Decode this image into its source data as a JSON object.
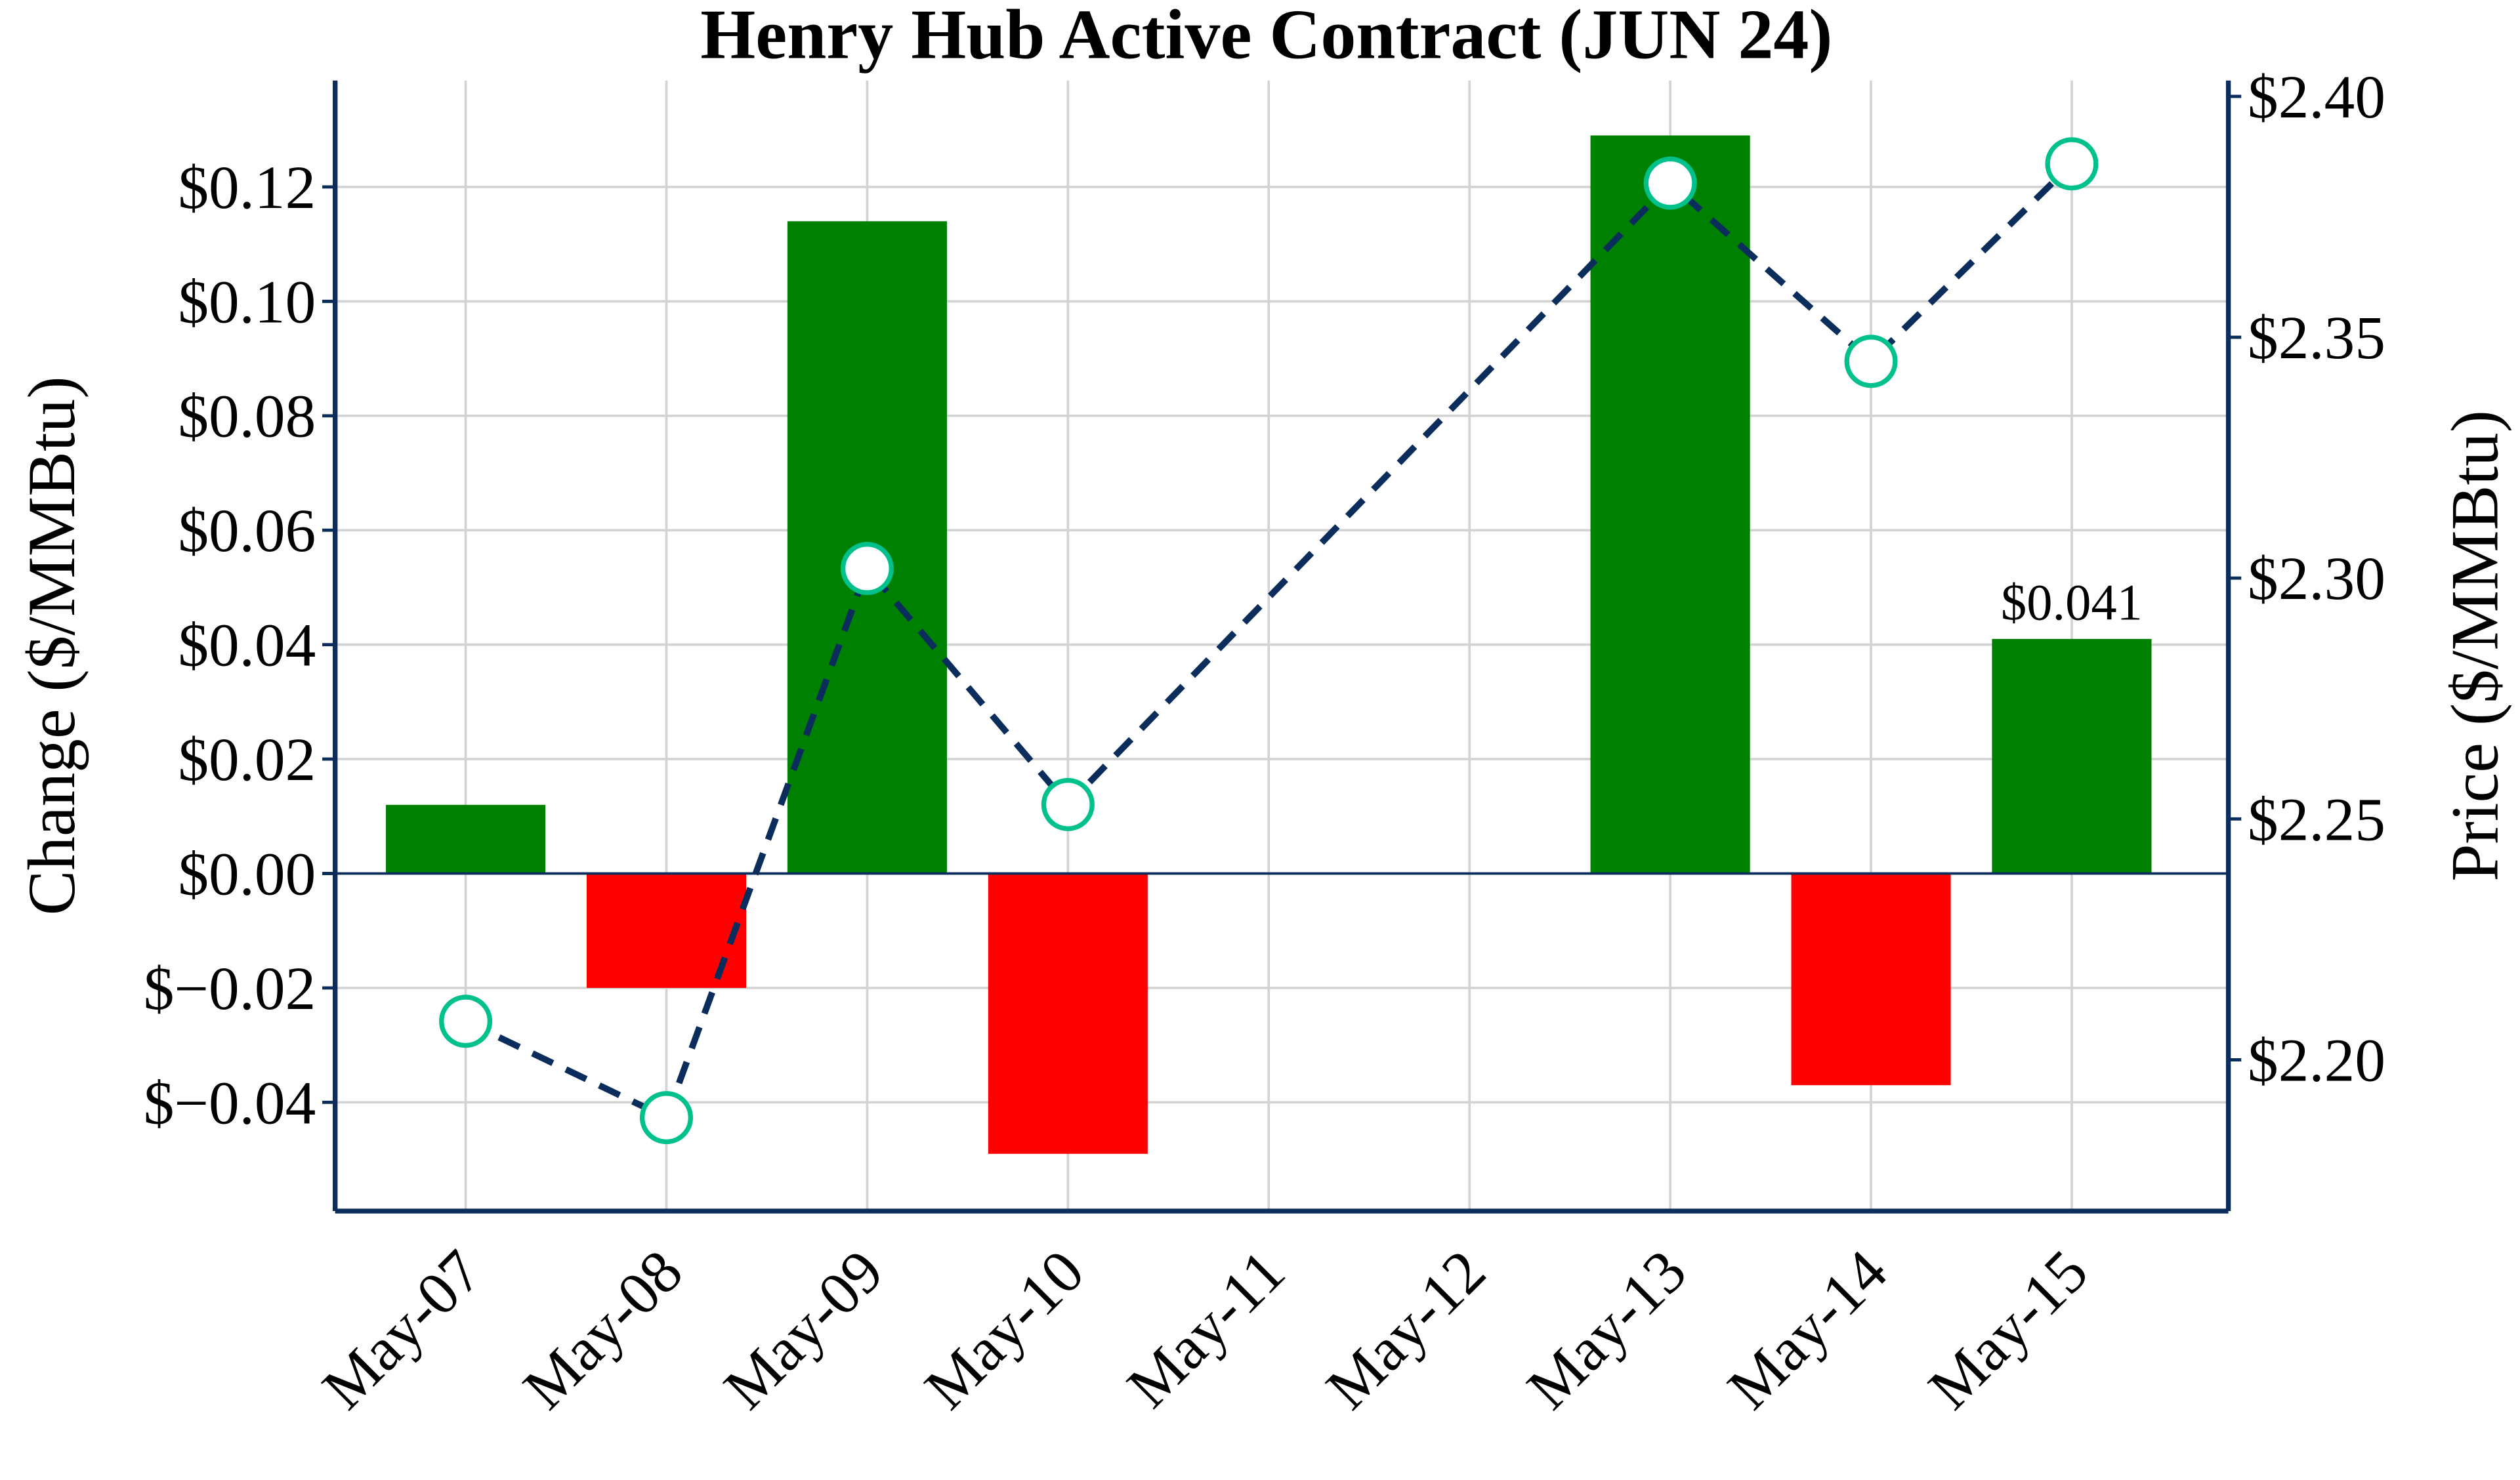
{
  "chart_data": {
    "type": "bar+line",
    "title": "Henry Hub Active Contract (JUN 24)",
    "xlabel": "",
    "ylabel_left": "Change ($/MMBtu)",
    "ylabel_right": "Price ($/MMBtu)",
    "categories": [
      "May-07",
      "May-08",
      "May-09",
      "May-10",
      "May-11",
      "May-12",
      "May-13",
      "May-14",
      "May-15"
    ],
    "change": [
      0.012,
      -0.02,
      0.114,
      -0.049,
      null,
      null,
      0.129,
      -0.037,
      0.041
    ],
    "price": [
      2.208,
      2.188,
      2.302,
      2.253,
      null,
      null,
      2.382,
      2.345,
      2.386
    ],
    "ylim_left": [
      -0.059,
      0.1386
    ],
    "ylim_right": [
      2.1686,
      2.4033
    ],
    "left_ticks": [
      -0.04,
      -0.02,
      0.0,
      0.02,
      0.04,
      0.06,
      0.08,
      0.1,
      0.12
    ],
    "left_tick_labels": [
      "$−0.04",
      "$−0.02",
      "$0.00",
      "$0.02",
      "$0.04",
      "$0.06",
      "$0.08",
      "$0.10",
      "$0.12"
    ],
    "right_ticks": [
      2.2,
      2.25,
      2.3,
      2.35,
      2.4
    ],
    "right_tick_labels": [
      "$2.20",
      "$2.25",
      "$2.30",
      "$2.35",
      "$2.40"
    ],
    "annotation": {
      "category": "May-15",
      "text": "$0.041"
    },
    "grid": true,
    "colors": {
      "up": "#008000",
      "down": "#ff0000",
      "line": "#0b2d5b",
      "marker_edge": "#00c08b",
      "axis": "#0b2d5b",
      "grid": "#d3d3d3"
    }
  }
}
